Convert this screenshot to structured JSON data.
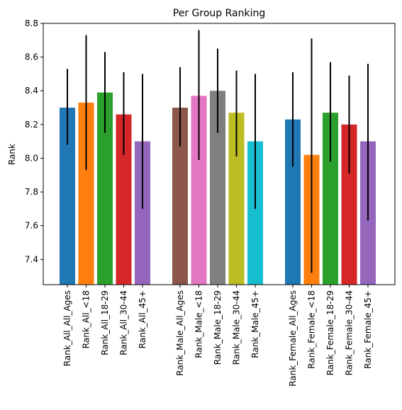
{
  "chart_data": {
    "type": "bar",
    "title": "Per Group Ranking",
    "xlabel": "",
    "ylabel": "Rank",
    "ylim": [
      7.25,
      8.8
    ],
    "yticks": [
      7.4,
      7.6,
      7.8,
      8.0,
      8.2,
      8.4,
      8.6,
      8.8
    ],
    "ytick_labels": [
      "7.4",
      "7.6",
      "7.8",
      "8.0",
      "8.2",
      "8.4",
      "8.6",
      "8.8"
    ],
    "grid": false,
    "bars": [
      {
        "label": "Rank_All_All_Ages",
        "value": 8.3,
        "err_low": 8.08,
        "err_high": 8.53,
        "color": "#1f77b4"
      },
      {
        "label": "Rank_All_<18",
        "value": 8.33,
        "err_low": 7.93,
        "err_high": 8.73,
        "color": "#ff7f0e"
      },
      {
        "label": "Rank_All_18-29",
        "value": 8.39,
        "err_low": 8.15,
        "err_high": 8.63,
        "color": "#2ca02c"
      },
      {
        "label": "Rank_All_30-44",
        "value": 8.26,
        "err_low": 8.02,
        "err_high": 8.51,
        "color": "#d62728"
      },
      {
        "label": "Rank_All_45+",
        "value": 8.1,
        "err_low": 7.7,
        "err_high": 8.5,
        "color": "#9467bd"
      },
      {
        "label": "Rank_Male_All_Ages",
        "value": 8.3,
        "err_low": 8.07,
        "err_high": 8.54,
        "color": "#8c564b"
      },
      {
        "label": "Rank_Male_<18",
        "value": 8.37,
        "err_low": 7.99,
        "err_high": 8.76,
        "color": "#e377c2"
      },
      {
        "label": "Rank_Male_18-29",
        "value": 8.4,
        "err_low": 8.15,
        "err_high": 8.65,
        "color": "#7f7f7f"
      },
      {
        "label": "Rank_Male_30-44",
        "value": 8.27,
        "err_low": 8.01,
        "err_high": 8.52,
        "color": "#bcbd22"
      },
      {
        "label": "Rank_Male_45+",
        "value": 8.1,
        "err_low": 7.7,
        "err_high": 8.5,
        "color": "#17becf"
      },
      {
        "label": "Rank_Female_All_Ages",
        "value": 8.23,
        "err_low": 7.95,
        "err_high": 8.51,
        "color": "#1f77b4"
      },
      {
        "label": "Rank_Female_<18",
        "value": 8.02,
        "err_low": 7.32,
        "err_high": 8.71,
        "color": "#ff7f0e"
      },
      {
        "label": "Rank_Female_18-29",
        "value": 8.27,
        "err_low": 7.98,
        "err_high": 8.57,
        "color": "#2ca02c"
      },
      {
        "label": "Rank_Female_30-44",
        "value": 8.2,
        "err_low": 7.91,
        "err_high": 8.49,
        "color": "#d62728"
      },
      {
        "label": "Rank_Female_45+",
        "value": 8.1,
        "err_low": 7.63,
        "err_high": 8.56,
        "color": "#9467bd"
      }
    ]
  }
}
